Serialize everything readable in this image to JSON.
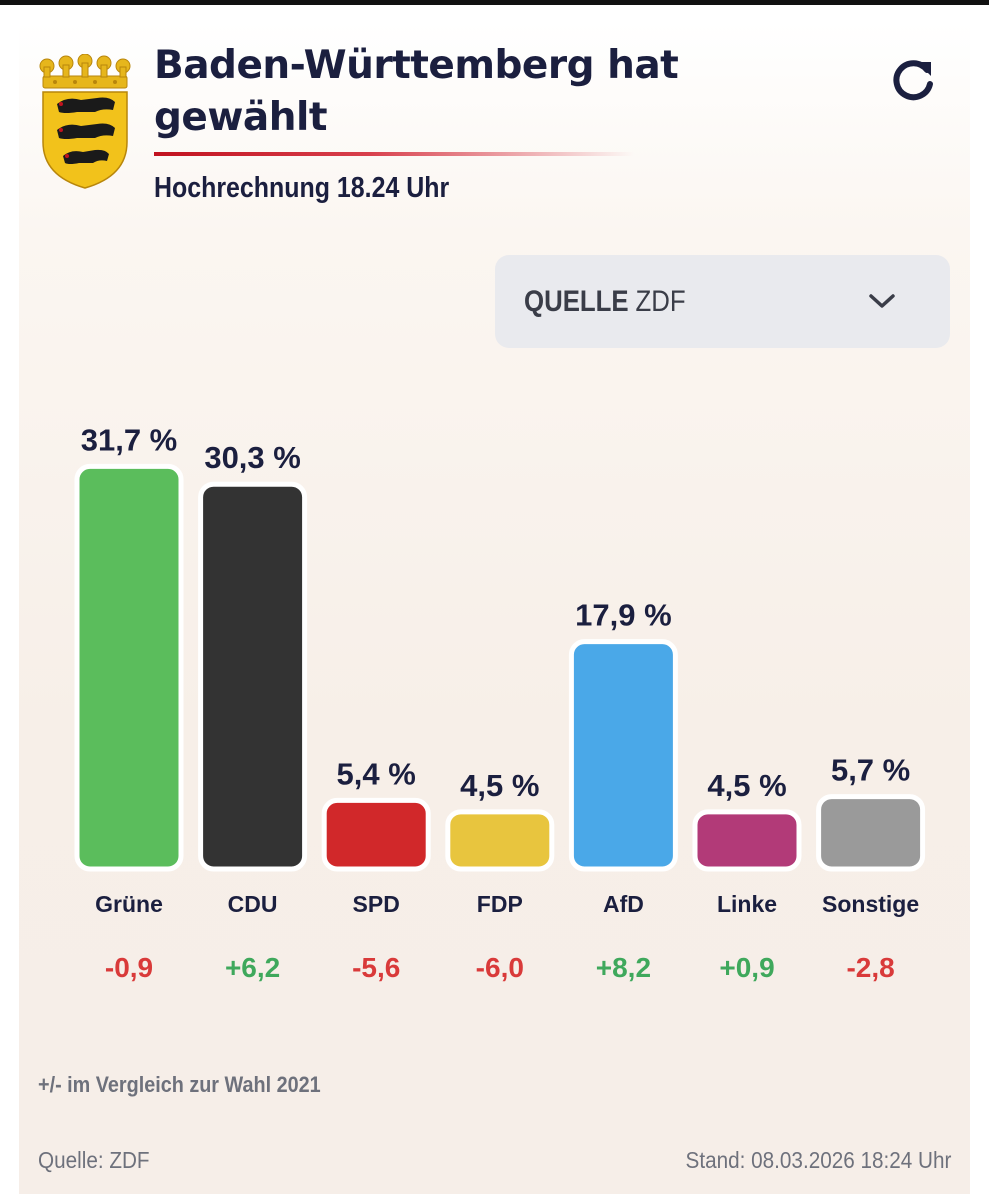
{
  "header": {
    "title": "Baden-Württemberg hat gewählt",
    "subtitle": "Hochrechnung 18.24 Uhr"
  },
  "source_select": {
    "label": "QUELLE",
    "value": "ZDF"
  },
  "chart_data": {
    "type": "bar",
    "categories": [
      "Grüne",
      "CDU",
      "SPD",
      "FDP",
      "AfD",
      "Linke",
      "Sonstige"
    ],
    "values": [
      31.7,
      30.3,
      5.4,
      4.5,
      17.9,
      4.5,
      5.7
    ],
    "value_labels": [
      "31,7 %",
      "30,3 %",
      "5,4 %",
      "4,5 %",
      "17,9 %",
      "4,5 %",
      "5,7 %"
    ],
    "changes": [
      "-0,9",
      "+6,2",
      "-5,6",
      "-6,0",
      "+8,2",
      "+0,9",
      "-2,8"
    ],
    "colors": [
      "#5bbd5c",
      "#333333",
      "#d1282a",
      "#e8c53e",
      "#4aa8e8",
      "#b23a78",
      "#9a9a9a"
    ],
    "change_colors": {
      "positive": "#3fa85c",
      "negative": "#d93a3a"
    }
  },
  "note": "+/- im Vergleich zur Wahl 2021",
  "footer": {
    "source": "Quelle: ZDF",
    "timestamp": "Stand: 08.03.2026 18:24 Uhr"
  }
}
